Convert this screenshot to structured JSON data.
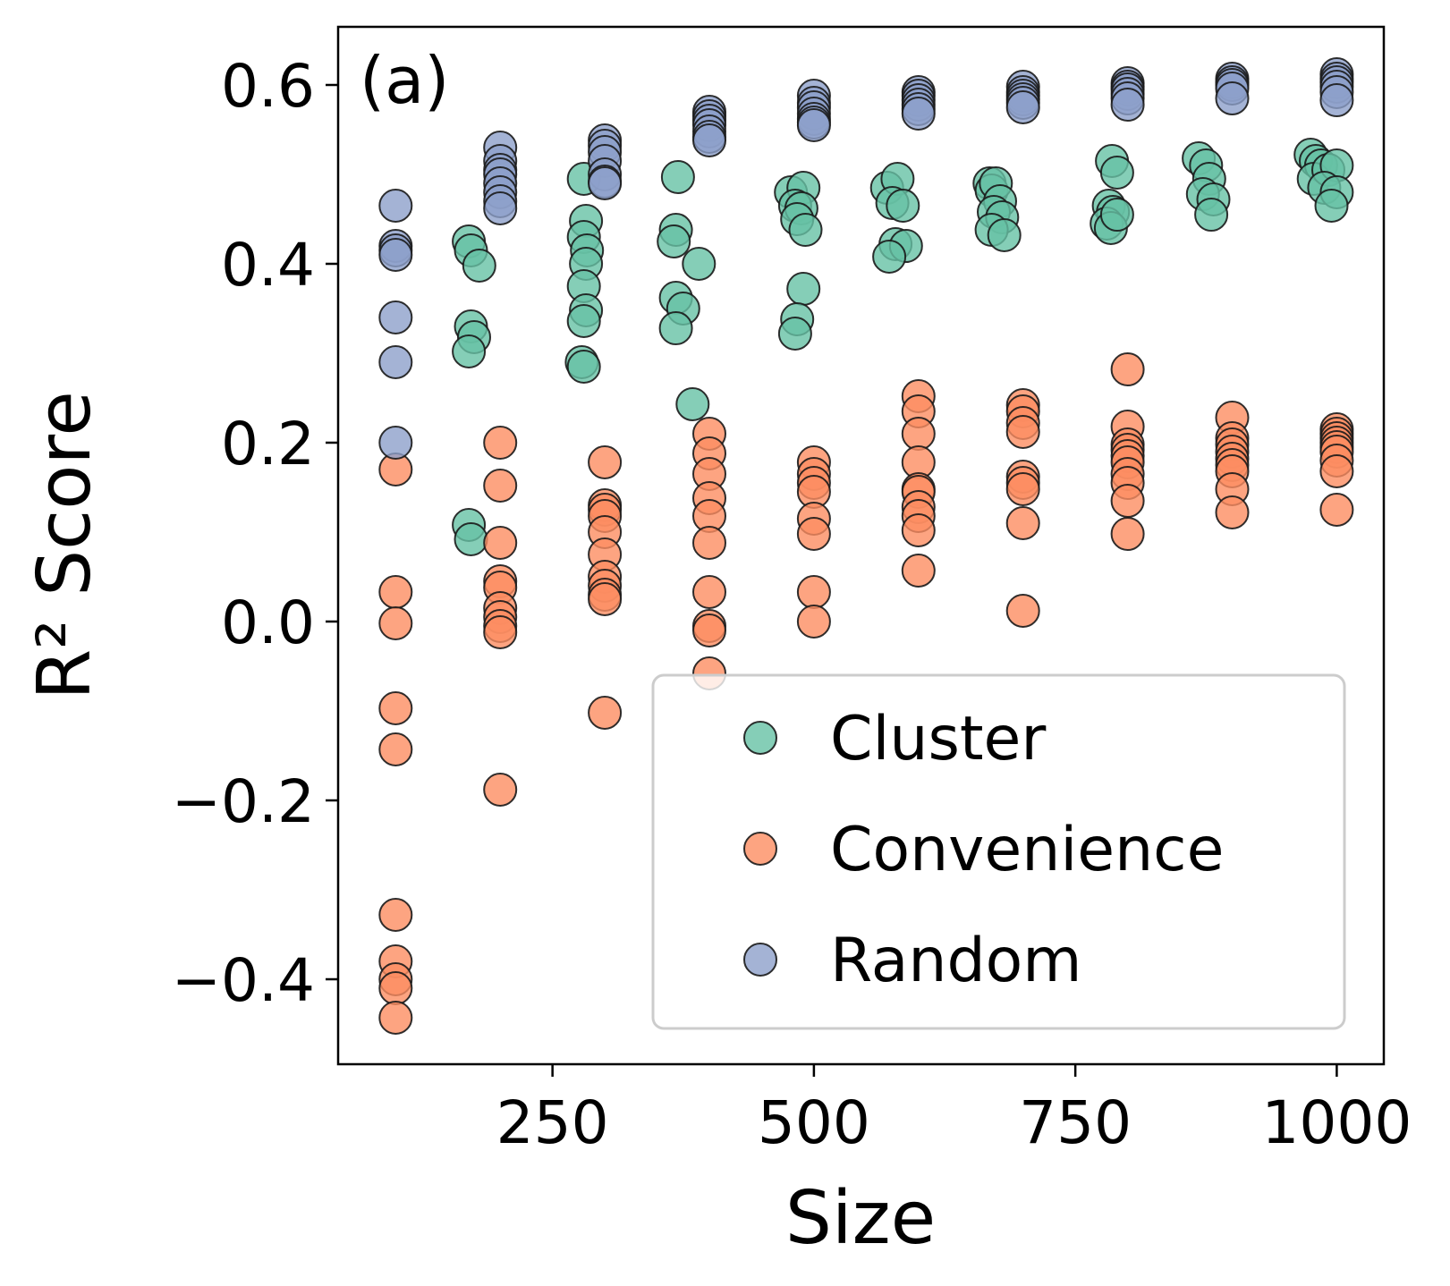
{
  "chart_data": {
    "type": "scatter",
    "panel_label": "(a)",
    "xlabel": "Size",
    "ylabel": "R² Score",
    "xlim": [
      45,
      1045
    ],
    "ylim": [
      -0.495,
      0.665
    ],
    "xticks": [
      250,
      500,
      750,
      1000
    ],
    "xtick_labels": [
      "250",
      "500",
      "750",
      "1000"
    ],
    "yticks": [
      -0.4,
      -0.2,
      0.0,
      0.2,
      0.4,
      0.6
    ],
    "ytick_labels": [
      "−0.4",
      "−0.2",
      "0.0",
      "0.2",
      "0.4",
      "0.6"
    ],
    "grid": false,
    "legend_position": "lower-right",
    "series": [
      {
        "name": "Cluster",
        "color": "#66c2a5",
        "points": [
          [
            170,
            0.425
          ],
          [
            172,
            0.415
          ],
          [
            180,
            0.398
          ],
          [
            172,
            0.33
          ],
          [
            175,
            0.318
          ],
          [
            170,
            0.302
          ],
          [
            170,
            0.108
          ],
          [
            172,
            0.092
          ],
          [
            280,
            0.495
          ],
          [
            282,
            0.448
          ],
          [
            280,
            0.43
          ],
          [
            283,
            0.415
          ],
          [
            282,
            0.4
          ],
          [
            280,
            0.375
          ],
          [
            282,
            0.348
          ],
          [
            280,
            0.336
          ],
          [
            278,
            0.29
          ],
          [
            280,
            0.285
          ],
          [
            370,
            0.497
          ],
          [
            368,
            0.438
          ],
          [
            366,
            0.425
          ],
          [
            390,
            0.4
          ],
          [
            368,
            0.362
          ],
          [
            375,
            0.35
          ],
          [
            368,
            0.328
          ],
          [
            384,
            0.243
          ],
          [
            478,
            0.48
          ],
          [
            490,
            0.485
          ],
          [
            482,
            0.465
          ],
          [
            488,
            0.462
          ],
          [
            484,
            0.45
          ],
          [
            492,
            0.438
          ],
          [
            490,
            0.372
          ],
          [
            484,
            0.338
          ],
          [
            482,
            0.322
          ],
          [
            570,
            0.485
          ],
          [
            580,
            0.495
          ],
          [
            575,
            0.468
          ],
          [
            585,
            0.465
          ],
          [
            578,
            0.422
          ],
          [
            588,
            0.42
          ],
          [
            572,
            0.408
          ],
          [
            668,
            0.49
          ],
          [
            670,
            0.482
          ],
          [
            674,
            0.49
          ],
          [
            678,
            0.47
          ],
          [
            672,
            0.458
          ],
          [
            680,
            0.452
          ],
          [
            670,
            0.438
          ],
          [
            682,
            0.432
          ],
          [
            785,
            0.515
          ],
          [
            790,
            0.502
          ],
          [
            782,
            0.465
          ],
          [
            786,
            0.458
          ],
          [
            780,
            0.445
          ],
          [
            784,
            0.44
          ],
          [
            790,
            0.455
          ],
          [
            868,
            0.518
          ],
          [
            875,
            0.51
          ],
          [
            878,
            0.495
          ],
          [
            872,
            0.478
          ],
          [
            882,
            0.472
          ],
          [
            880,
            0.455
          ],
          [
            975,
            0.522
          ],
          [
            980,
            0.515
          ],
          [
            985,
            0.51
          ],
          [
            978,
            0.495
          ],
          [
            992,
            0.505
          ],
          [
            1000,
            0.51
          ],
          [
            988,
            0.485
          ],
          [
            1000,
            0.48
          ],
          [
            995,
            0.465
          ]
        ]
      },
      {
        "name": "Convenience",
        "color": "#fc8d62",
        "points": [
          [
            100,
            0.17
          ],
          [
            100,
            0.033
          ],
          [
            100,
            -0.002
          ],
          [
            100,
            -0.097
          ],
          [
            100,
            -0.143
          ],
          [
            100,
            -0.328
          ],
          [
            100,
            -0.38
          ],
          [
            100,
            -0.4
          ],
          [
            100,
            -0.41
          ],
          [
            100,
            -0.443
          ],
          [
            200,
            0.2
          ],
          [
            200,
            0.152
          ],
          [
            200,
            0.088
          ],
          [
            200,
            0.045
          ],
          [
            200,
            0.038
          ],
          [
            200,
            0.015
          ],
          [
            200,
            0.005
          ],
          [
            200,
            -0.005
          ],
          [
            200,
            -0.012
          ],
          [
            200,
            -0.188
          ],
          [
            300,
            0.178
          ],
          [
            300,
            0.13
          ],
          [
            300,
            0.125
          ],
          [
            300,
            0.118
          ],
          [
            300,
            0.1
          ],
          [
            300,
            0.075
          ],
          [
            300,
            0.05
          ],
          [
            300,
            0.04
          ],
          [
            300,
            0.03
          ],
          [
            300,
            0.025
          ],
          [
            300,
            -0.102
          ],
          [
            400,
            0.21
          ],
          [
            400,
            0.188
          ],
          [
            400,
            0.165
          ],
          [
            400,
            0.138
          ],
          [
            400,
            0.118
          ],
          [
            400,
            0.088
          ],
          [
            400,
            0.033
          ],
          [
            400,
            -0.005
          ],
          [
            400,
            -0.01
          ],
          [
            400,
            -0.058
          ],
          [
            500,
            0.178
          ],
          [
            500,
            0.165
          ],
          [
            500,
            0.155
          ],
          [
            500,
            0.145
          ],
          [
            500,
            0.115
          ],
          [
            500,
            0.098
          ],
          [
            500,
            0.033
          ],
          [
            500,
            0.0
          ],
          [
            600,
            0.252
          ],
          [
            600,
            0.235
          ],
          [
            600,
            0.21
          ],
          [
            600,
            0.178
          ],
          [
            600,
            0.148
          ],
          [
            600,
            0.145
          ],
          [
            600,
            0.128
          ],
          [
            600,
            0.118
          ],
          [
            600,
            0.102
          ],
          [
            600,
            0.057
          ],
          [
            700,
            0.242
          ],
          [
            700,
            0.235
          ],
          [
            700,
            0.222
          ],
          [
            700,
            0.212
          ],
          [
            700,
            0.162
          ],
          [
            700,
            0.155
          ],
          [
            700,
            0.148
          ],
          [
            700,
            0.11
          ],
          [
            700,
            0.012
          ],
          [
            800,
            0.282
          ],
          [
            800,
            0.218
          ],
          [
            800,
            0.198
          ],
          [
            800,
            0.192
          ],
          [
            800,
            0.185
          ],
          [
            800,
            0.178
          ],
          [
            800,
            0.165
          ],
          [
            800,
            0.155
          ],
          [
            800,
            0.135
          ],
          [
            800,
            0.098
          ],
          [
            900,
            0.228
          ],
          [
            900,
            0.205
          ],
          [
            900,
            0.198
          ],
          [
            900,
            0.19
          ],
          [
            900,
            0.182
          ],
          [
            900,
            0.175
          ],
          [
            900,
            0.168
          ],
          [
            900,
            0.148
          ],
          [
            900,
            0.122
          ],
          [
            1000,
            0.215
          ],
          [
            1000,
            0.21
          ],
          [
            1000,
            0.205
          ],
          [
            1000,
            0.2
          ],
          [
            1000,
            0.195
          ],
          [
            1000,
            0.19
          ],
          [
            1000,
            0.18
          ],
          [
            1000,
            0.168
          ],
          [
            1000,
            0.125
          ]
        ]
      },
      {
        "name": "Random",
        "color": "#8da0cb",
        "points": [
          [
            100,
            0.465
          ],
          [
            100,
            0.42
          ],
          [
            100,
            0.415
          ],
          [
            100,
            0.41
          ],
          [
            100,
            0.34
          ],
          [
            100,
            0.29
          ],
          [
            100,
            0.2
          ],
          [
            200,
            0.53
          ],
          [
            200,
            0.515
          ],
          [
            200,
            0.505
          ],
          [
            200,
            0.5
          ],
          [
            200,
            0.49
          ],
          [
            200,
            0.48
          ],
          [
            200,
            0.47
          ],
          [
            200,
            0.462
          ],
          [
            300,
            0.538
          ],
          [
            300,
            0.532
          ],
          [
            300,
            0.525
          ],
          [
            300,
            0.515
          ],
          [
            300,
            0.5
          ],
          [
            300,
            0.492
          ],
          [
            300,
            0.49
          ],
          [
            400,
            0.57
          ],
          [
            400,
            0.565
          ],
          [
            400,
            0.56
          ],
          [
            400,
            0.555
          ],
          [
            400,
            0.548
          ],
          [
            400,
            0.542
          ],
          [
            400,
            0.538
          ],
          [
            500,
            0.588
          ],
          [
            500,
            0.58
          ],
          [
            500,
            0.575
          ],
          [
            500,
            0.568
          ],
          [
            500,
            0.562
          ],
          [
            500,
            0.558
          ],
          [
            500,
            0.555
          ],
          [
            600,
            0.592
          ],
          [
            600,
            0.588
          ],
          [
            600,
            0.583
          ],
          [
            600,
            0.578
          ],
          [
            600,
            0.573
          ],
          [
            600,
            0.568
          ],
          [
            700,
            0.598
          ],
          [
            700,
            0.592
          ],
          [
            700,
            0.588
          ],
          [
            700,
            0.584
          ],
          [
            700,
            0.58
          ],
          [
            700,
            0.575
          ],
          [
            800,
            0.602
          ],
          [
            800,
            0.598
          ],
          [
            800,
            0.595
          ],
          [
            800,
            0.59
          ],
          [
            800,
            0.585
          ],
          [
            800,
            0.578
          ],
          [
            900,
            0.607
          ],
          [
            900,
            0.603
          ],
          [
            900,
            0.6
          ],
          [
            900,
            0.596
          ],
          [
            900,
            0.585
          ],
          [
            1000,
            0.612
          ],
          [
            1000,
            0.607
          ],
          [
            1000,
            0.603
          ],
          [
            1000,
            0.598
          ],
          [
            1000,
            0.592
          ],
          [
            1000,
            0.583
          ]
        ]
      }
    ]
  }
}
